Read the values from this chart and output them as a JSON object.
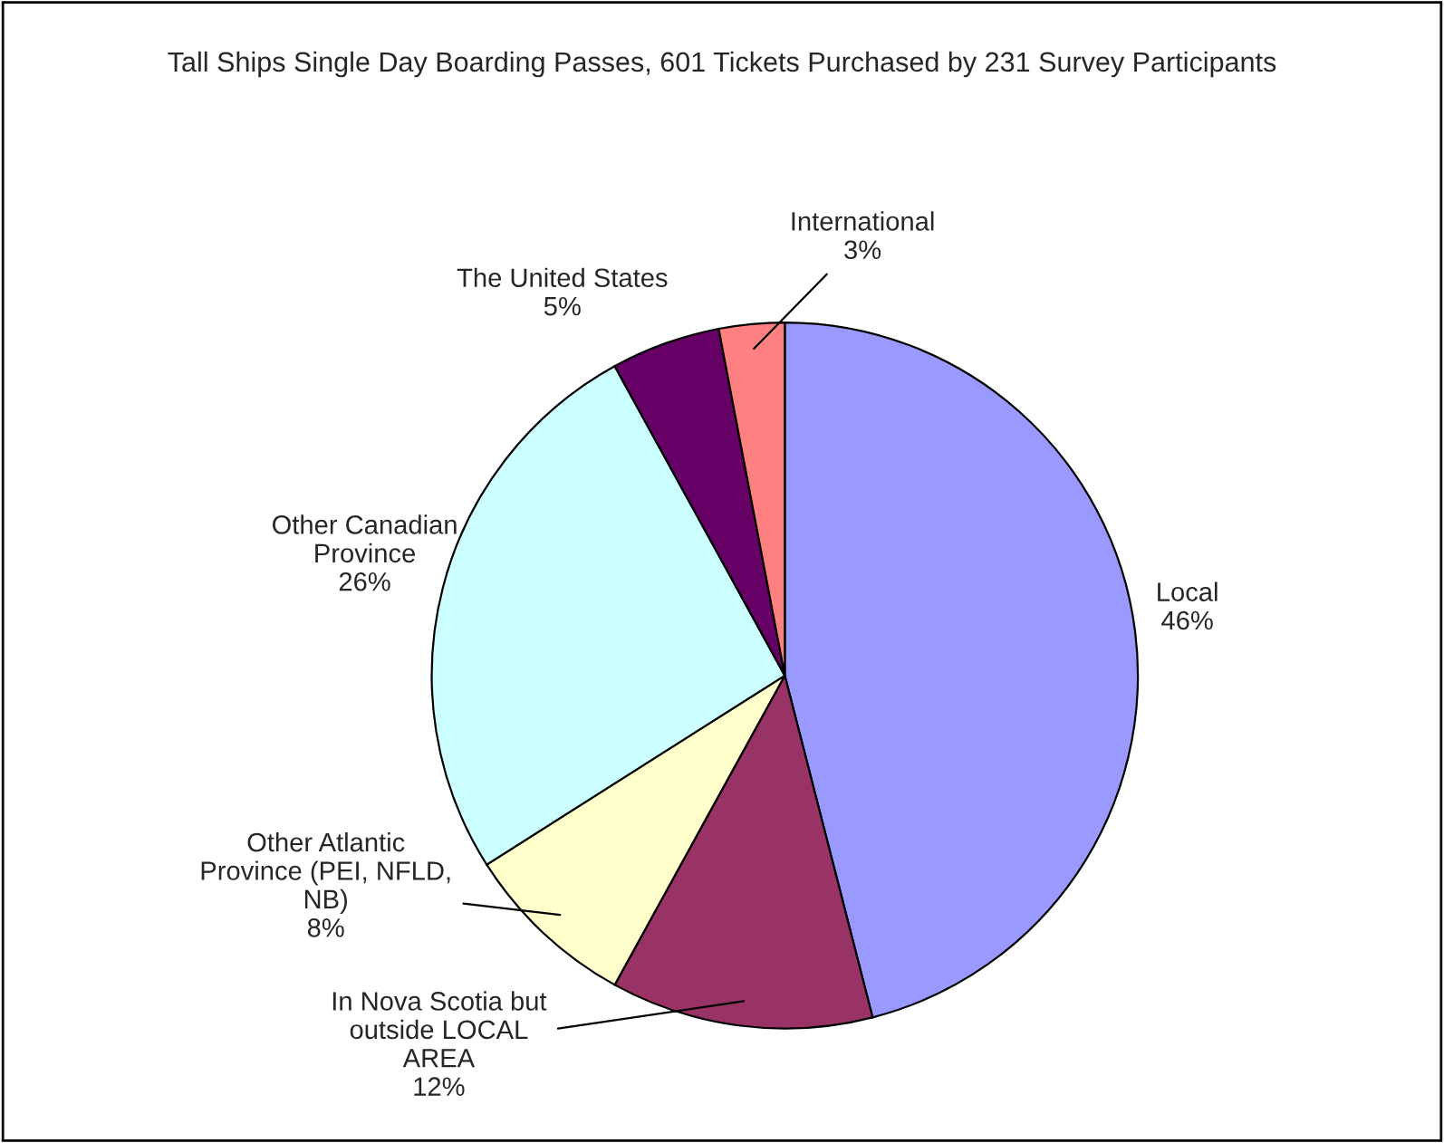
{
  "chart_data": {
    "type": "pie",
    "title": "Tall Ships Single Day Boarding Passes, 601 Tickets Purchased by 231 Survey Participants",
    "categories": [
      "Local",
      "In Nova Scotia but\noutside LOCAL\nAREA",
      "Other Atlantic\nProvince (PEI, NFLD,\nNB)",
      "Other Canadian\nProvince",
      "The United States",
      "International"
    ],
    "values": [
      46,
      12,
      8,
      26,
      5,
      3
    ],
    "value_labels": [
      "46%",
      "12%",
      "8%",
      "26%",
      "5%",
      "3%"
    ],
    "colors": [
      "#9999ff",
      "#993366",
      "#ffffcc",
      "#ccffff",
      "#660066",
      "#ff8080"
    ],
    "legend": false
  }
}
